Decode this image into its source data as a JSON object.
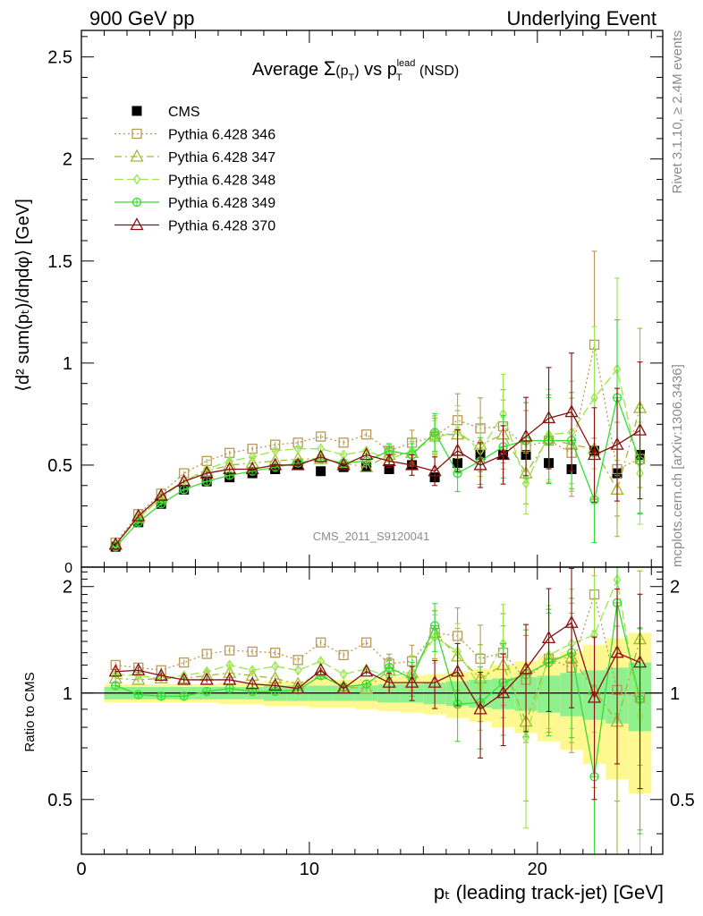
{
  "header": {
    "left": "900 GeV pp",
    "right": "Underlying Event"
  },
  "side_text": {
    "rivet": "Rivet 3.1.10, ≥ 2.4M events",
    "mcplots": "mcplots.cern.ch [arXiv:1306.3436]"
  },
  "watermark": "CMS_2011_S9120041",
  "title_parts": {
    "lead": "Average ",
    "sigma": "Σ",
    "arg": "(p",
    "arg_sub": "T",
    "arg_close": ")",
    "vs": " vs p",
    "vs_sub": "T",
    "vs_sup": "lead",
    "tail": " (NSD)"
  },
  "ylabel_top": "⟨d² sum(pₜ)/dηdφ⟩ [GeV]",
  "ylabel_bottom": "Ratio to CMS",
  "xlabel": "pₜ (leading track-jet) [GeV]",
  "colors": {
    "cms": "#000000",
    "p346": "#b8995a",
    "p347": "#a3b832",
    "p348": "#99e64d",
    "p349": "#33dd33",
    "p370": "#8b0f0f",
    "band_inner": "#90f090",
    "band_outer": "#fff890"
  },
  "chart_data": [
    {
      "type": "scatter",
      "panel": "main",
      "x": [
        1.5,
        2.5,
        3.5,
        4.5,
        5.5,
        6.5,
        7.5,
        8.5,
        9.5,
        10.5,
        11.5,
        12.5,
        13.5,
        14.5,
        15.5,
        16.5,
        17.5,
        18.5,
        19.5,
        20.5,
        21.5,
        22.5,
        23.5,
        24.5
      ],
      "xlim": [
        0,
        25.5
      ],
      "ylim": [
        0,
        2.63
      ],
      "xticks": [
        0,
        10,
        20
      ],
      "yticks": [
        0.5,
        1,
        1.5,
        2,
        2.5
      ],
      "ytick_labels": [
        "0.5",
        "1",
        "1.5",
        "2",
        "2.5"
      ],
      "zero_label": "0",
      "series": [
        {
          "name": "CMS",
          "key": "cms",
          "marker": "filled-square",
          "values": [
            0.1,
            0.22,
            0.31,
            0.38,
            0.42,
            0.44,
            0.46,
            0.48,
            0.5,
            0.47,
            0.49,
            0.49,
            0.48,
            0.5,
            0.44,
            0.51,
            0.55,
            0.55,
            0.55,
            0.51,
            0.48,
            0.57,
            0.46,
            0.55
          ]
        },
        {
          "name": "Pythia 6.428 346",
          "key": "p346",
          "marker": "open-square",
          "dash": "2,3",
          "values": [
            0.12,
            0.26,
            0.36,
            0.46,
            0.52,
            0.56,
            0.58,
            0.6,
            0.61,
            0.64,
            0.61,
            0.65,
            0.57,
            0.61,
            0.64,
            0.72,
            0.68,
            0.69,
            0.59,
            0.62,
            0.56,
            1.09,
            0.48,
            0.53
          ]
        },
        {
          "name": "Pythia 6.428 347",
          "key": "p347",
          "marker": "open-triangle",
          "dash": "8,4,2,4",
          "values": [
            0.11,
            0.24,
            0.34,
            0.42,
            0.47,
            0.5,
            0.51,
            0.52,
            0.53,
            0.53,
            0.51,
            0.49,
            0.55,
            0.56,
            0.65,
            0.65,
            0.6,
            0.65,
            0.46,
            0.63,
            0.6,
            0.58,
            0.38,
            0.78
          ]
        },
        {
          "name": "Pythia 6.428 348",
          "key": "p348",
          "marker": "open-diamond",
          "dash": "10,4",
          "values": [
            0.11,
            0.24,
            0.34,
            0.42,
            0.48,
            0.52,
            0.54,
            0.57,
            0.58,
            0.58,
            0.55,
            0.57,
            0.53,
            0.57,
            0.63,
            0.67,
            0.57,
            0.75,
            0.41,
            0.65,
            0.66,
            0.83,
            0.97,
            0.46
          ]
        },
        {
          "name": "Pythia 6.428 349",
          "key": "p349",
          "marker": "open-circle-cross",
          "dash": "",
          "values": [
            0.1,
            0.22,
            0.31,
            0.38,
            0.42,
            0.45,
            0.47,
            0.49,
            0.51,
            0.53,
            0.51,
            0.52,
            0.57,
            0.55,
            0.66,
            0.46,
            0.52,
            0.59,
            0.62,
            0.62,
            0.62,
            0.33,
            0.83,
            0.52
          ]
        },
        {
          "name": "Pythia 6.428 370",
          "key": "p370",
          "marker": "open-triangle",
          "dash": "",
          "values": [
            0.11,
            0.25,
            0.35,
            0.42,
            0.46,
            0.48,
            0.48,
            0.5,
            0.5,
            0.54,
            0.5,
            0.55,
            0.52,
            0.5,
            0.47,
            0.57,
            0.5,
            0.55,
            0.64,
            0.73,
            0.76,
            0.55,
            0.6,
            0.67
          ]
        }
      ]
    },
    {
      "type": "scatter",
      "panel": "ratio",
      "x": [
        1.5,
        2.5,
        3.5,
        4.5,
        5.5,
        6.5,
        7.5,
        8.5,
        9.5,
        10.5,
        11.5,
        12.5,
        13.5,
        14.5,
        15.5,
        16.5,
        17.5,
        18.5,
        19.5,
        20.5,
        21.5,
        22.5,
        23.5,
        24.5
      ],
      "xlim": [
        0,
        25.5
      ],
      "ylim": [
        0.35,
        2.27
      ],
      "xticks": [
        0,
        10,
        20
      ],
      "xtick_labels": [
        "0",
        "10",
        "20"
      ],
      "yticks": [
        0.5,
        1,
        2
      ],
      "ytick_labels": [
        "0.5",
        "1",
        "2"
      ],
      "ylabel": "Ratio to CMS",
      "band_inner_halfwidth": [
        0.04,
        0.04,
        0.04,
        0.04,
        0.04,
        0.04,
        0.04,
        0.05,
        0.05,
        0.05,
        0.05,
        0.05,
        0.06,
        0.06,
        0.07,
        0.08,
        0.09,
        0.1,
        0.11,
        0.12,
        0.14,
        0.16,
        0.18,
        0.22
      ],
      "band_outer_halfwidth": [
        0.06,
        0.06,
        0.06,
        0.06,
        0.06,
        0.07,
        0.07,
        0.08,
        0.08,
        0.09,
        0.09,
        0.1,
        0.11,
        0.12,
        0.13,
        0.15,
        0.17,
        0.2,
        0.23,
        0.27,
        0.31,
        0.37,
        0.43,
        0.48
      ],
      "series": [
        {
          "name": "Pythia 6.428 346",
          "key": "p346",
          "values": [
            1.2,
            1.18,
            1.16,
            1.22,
            1.29,
            1.32,
            1.31,
            1.3,
            1.24,
            1.39,
            1.28,
            1.39,
            1.21,
            1.23,
            1.48,
            1.45,
            1.25,
            1.3,
            1.09,
            1.25,
            1.18,
            1.9,
            1.02,
            0.97
          ]
        },
        {
          "name": "Pythia 6.428 347",
          "key": "p347",
          "values": [
            1.1,
            1.09,
            1.1,
            1.1,
            1.12,
            1.14,
            1.12,
            1.1,
            1.06,
            1.13,
            1.04,
            1.03,
            1.16,
            1.14,
            1.48,
            1.27,
            1.1,
            1.2,
            0.83,
            1.25,
            1.26,
            1.02,
            0.83,
            1.42
          ]
        },
        {
          "name": "Pythia 6.428 348",
          "key": "p348",
          "values": [
            1.13,
            1.12,
            1.1,
            1.12,
            1.15,
            1.2,
            1.16,
            1.19,
            1.16,
            1.23,
            1.13,
            1.17,
            1.11,
            1.15,
            1.44,
            1.31,
            1.04,
            1.38,
            0.75,
            1.28,
            1.38,
            1.46,
            2.09,
            0.86
          ]
        },
        {
          "name": "Pythia 6.428 349",
          "key": "p349",
          "values": [
            1.05,
            0.99,
            0.98,
            0.98,
            1.01,
            1.03,
            1.01,
            1.01,
            1.02,
            1.12,
            1.04,
            1.06,
            1.18,
            1.1,
            1.55,
            0.93,
            0.94,
            1.07,
            1.13,
            1.22,
            1.3,
            0.58,
            1.8,
            0.96
          ]
        },
        {
          "name": "Pythia 6.428 370",
          "key": "p370",
          "values": [
            1.15,
            1.16,
            1.12,
            1.09,
            1.09,
            1.09,
            1.06,
            1.05,
            1.03,
            1.16,
            1.03,
            1.15,
            1.07,
            1.07,
            1.07,
            1.15,
            0.9,
            1.0,
            1.17,
            1.43,
            1.58,
            0.97,
            1.3,
            1.22
          ]
        }
      ]
    }
  ]
}
